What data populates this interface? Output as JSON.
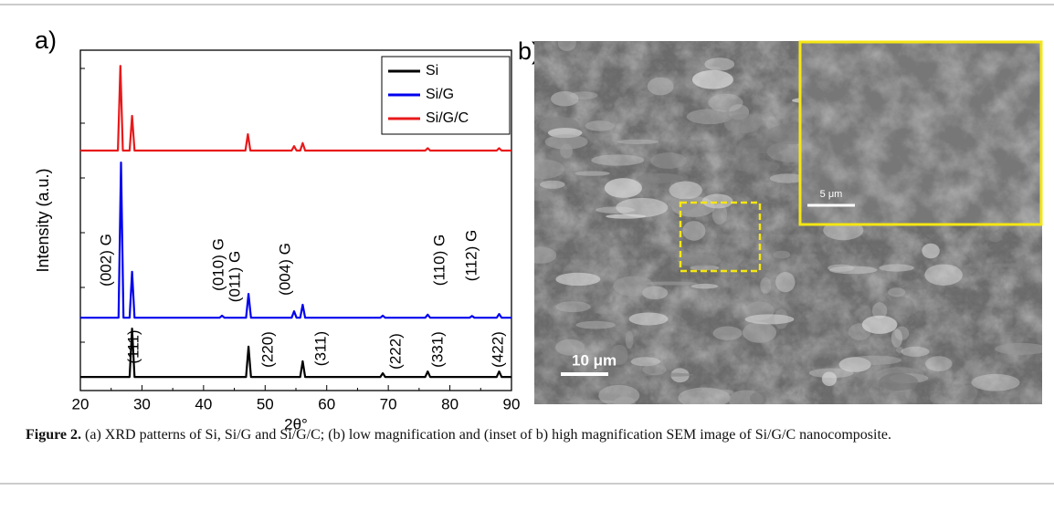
{
  "panel_labels": [
    "a)",
    "b)"
  ],
  "chart_data": {
    "type": "line",
    "xlabel": "2θ°",
    "ylabel": "Intensity (a.u.)",
    "xlim": [
      20,
      90
    ],
    "xticks": [
      20,
      30,
      40,
      50,
      60,
      70,
      80,
      90
    ],
    "ylim": [
      0,
      100
    ],
    "legend": "upper right",
    "series": [
      {
        "name": "Si",
        "color": "#000000",
        "x": [
          20,
          28.0,
          28.4,
          28.8,
          46.9,
          47.3,
          47.7,
          55.7,
          56.1,
          56.5,
          68.7,
          69.1,
          69.5,
          76.0,
          76.4,
          76.8,
          87.6,
          88,
          88.4,
          90
        ],
        "values": [
          4,
          4,
          18.2,
          4,
          4,
          12.9,
          4,
          4,
          8.6,
          4,
          4,
          5.1,
          4,
          4,
          5.6,
          4,
          4,
          5.6,
          4,
          4
        ]
      },
      {
        "name": "Si/G",
        "color": "#0000ee",
        "x": [
          20,
          26.2,
          26.6,
          27.0,
          28.0,
          28.4,
          28.8,
          42.6,
          43,
          43.4,
          46.9,
          47.3,
          47.7,
          54.3,
          54.7,
          55.1,
          55.7,
          56.1,
          56.5,
          68.7,
          69.1,
          69.5,
          76,
          76.4,
          76.8,
          83.2,
          83.6,
          84,
          87.6,
          88,
          88.4,
          90
        ],
        "values": [
          21.4,
          21.4,
          67,
          21.4,
          21.4,
          34.9,
          21.4,
          21.4,
          22.0,
          21.4,
          21.4,
          28.4,
          21.4,
          21.4,
          23.3,
          21.4,
          21.4,
          25.2,
          21.4,
          21.4,
          22.0,
          21.4,
          21.4,
          22.3,
          21.4,
          21.4,
          21.9,
          21.4,
          21.4,
          22.5,
          21.4,
          21.4
        ]
      },
      {
        "name": "Si/G/C",
        "color": "#e8191b",
        "x": [
          20,
          26.1,
          26.5,
          26.9,
          28.0,
          28.4,
          28.8,
          46.8,
          47.2,
          47.6,
          54.3,
          54.7,
          55.1,
          55.7,
          56.1,
          56.5,
          76,
          76.4,
          76.8,
          87.6,
          88,
          88.4,
          90
        ],
        "values": [
          70.5,
          70.5,
          95.4,
          70.5,
          70.5,
          80.7,
          70.5,
          70.5,
          75.3,
          70.5,
          70.5,
          71.8,
          70.5,
          70.5,
          72.7,
          70.5,
          70.5,
          71.2,
          70.5,
          70.5,
          71.2,
          70.5,
          70.5
        ]
      }
    ],
    "annotations": [
      "(002) G",
      "(010) G",
      "(011) G",
      "(004) G",
      "(110) G",
      "(112) G",
      "(111)",
      "(220)",
      "(311)",
      "(222)",
      "(331)",
      "(422)"
    ]
  },
  "sem_image": {
    "scale_bar": "10 μm",
    "inset_scale_bar": "5 μm"
  },
  "caption": {
    "label": "Figure 2.",
    "text": "(a) XRD patterns of Si, Si/G and Si/G/C; (b) low magnification and (inset of b) high magnification SEM image of Si/G/C nanocomposite."
  }
}
